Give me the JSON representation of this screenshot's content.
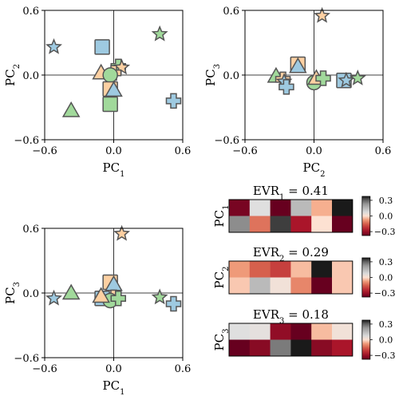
{
  "chart_data": [
    {
      "type": "scatter",
      "panel": "top-left",
      "xlabel": "PC",
      "xlabel_sub": "1",
      "ylabel": "PC",
      "ylabel_sub": "2",
      "xlim": [
        -0.6,
        0.6
      ],
      "ylim": [
        -0.6,
        0.6
      ],
      "xticks": [
        "−0.6",
        "0.0",
        "0.6"
      ],
      "yticks": [
        "−0.6",
        "0.0",
        "0.6"
      ],
      "points": [
        {
          "marker": "star",
          "color": "blue",
          "x": -0.52,
          "y": 0.26
        },
        {
          "marker": "square",
          "color": "blue",
          "x": -0.1,
          "y": 0.26
        },
        {
          "marker": "star",
          "color": "green",
          "x": 0.4,
          "y": 0.38
        },
        {
          "marker": "triangle",
          "color": "orange",
          "x": -0.11,
          "y": 0.02
        },
        {
          "marker": "plus",
          "color": "green",
          "x": 0.04,
          "y": 0.08
        },
        {
          "marker": "star",
          "color": "orange",
          "x": 0.07,
          "y": 0.07
        },
        {
          "marker": "plus",
          "color": "orange",
          "x": 0.0,
          "y": 0.02
        },
        {
          "marker": "circle",
          "color": "green",
          "x": -0.03,
          "y": 0.0
        },
        {
          "marker": "square",
          "color": "orange",
          "x": -0.03,
          "y": -0.13
        },
        {
          "marker": "triangle",
          "color": "blue",
          "x": 0.0,
          "y": -0.14
        },
        {
          "marker": "square",
          "color": "green",
          "x": -0.03,
          "y": -0.27
        },
        {
          "marker": "triangle",
          "color": "green",
          "x": -0.37,
          "y": -0.33
        },
        {
          "marker": "plus",
          "color": "blue",
          "x": 0.52,
          "y": -0.24
        }
      ]
    },
    {
      "type": "scatter",
      "panel": "top-right",
      "xlabel": "PC",
      "xlabel_sub": "2",
      "ylabel": "PC",
      "ylabel_sub": "3",
      "xlim": [
        -0.6,
        0.6
      ],
      "ylim": [
        -0.6,
        0.6
      ],
      "xticks": [
        "−0.6",
        "0.0",
        "0.6"
      ],
      "yticks": [
        "−0.6",
        "0.0",
        "0.6"
      ],
      "points": [
        {
          "marker": "star",
          "color": "orange",
          "x": 0.07,
          "y": 0.55
        },
        {
          "marker": "square",
          "color": "orange",
          "x": -0.14,
          "y": 0.1
        },
        {
          "marker": "triangle",
          "color": "blue",
          "x": -0.14,
          "y": 0.08
        },
        {
          "marker": "triangle",
          "color": "green",
          "x": -0.33,
          "y": -0.01
        },
        {
          "marker": "plus",
          "color": "orange",
          "x": -0.27,
          "y": -0.04
        },
        {
          "marker": "star",
          "color": "blue",
          "x": -0.26,
          "y": -0.06
        },
        {
          "marker": "plus",
          "color": "blue",
          "x": -0.24,
          "y": -0.11
        },
        {
          "marker": "circle",
          "color": "green",
          "x": 0.0,
          "y": -0.07
        },
        {
          "marker": "triangle",
          "color": "orange",
          "x": 0.02,
          "y": -0.03
        },
        {
          "marker": "plus",
          "color": "green",
          "x": 0.08,
          "y": -0.03
        },
        {
          "marker": "square",
          "color": "blue",
          "x": 0.26,
          "y": -0.05
        },
        {
          "marker": "star",
          "color": "blue",
          "x": 0.28,
          "y": -0.05
        },
        {
          "marker": "star",
          "color": "green",
          "x": 0.38,
          "y": -0.03
        }
      ]
    },
    {
      "type": "scatter",
      "panel": "bottom-left",
      "xlabel": "PC",
      "xlabel_sub": "1",
      "ylabel": "PC",
      "ylabel_sub": "3",
      "xlim": [
        -0.6,
        0.6
      ],
      "ylim": [
        -0.6,
        0.6
      ],
      "xticks": [
        "−0.6",
        "0.0",
        "0.6"
      ],
      "yticks": [
        "−0.6",
        "0.0",
        "0.6"
      ],
      "points": [
        {
          "marker": "star",
          "color": "orange",
          "x": 0.07,
          "y": 0.55
        },
        {
          "marker": "square",
          "color": "orange",
          "x": -0.03,
          "y": 0.1
        },
        {
          "marker": "triangle",
          "color": "blue",
          "x": 0.0,
          "y": 0.08
        },
        {
          "marker": "triangle",
          "color": "green",
          "x": -0.37,
          "y": 0.0
        },
        {
          "marker": "star",
          "color": "blue",
          "x": -0.52,
          "y": -0.05
        },
        {
          "marker": "square",
          "color": "blue",
          "x": -0.1,
          "y": -0.05
        },
        {
          "marker": "plus",
          "color": "orange",
          "x": 0.0,
          "y": -0.04
        },
        {
          "marker": "circle",
          "color": "green",
          "x": -0.03,
          "y": -0.07
        },
        {
          "marker": "triangle",
          "color": "orange",
          "x": -0.11,
          "y": -0.03
        },
        {
          "marker": "plus",
          "color": "green",
          "x": 0.04,
          "y": -0.05
        },
        {
          "marker": "star",
          "color": "green",
          "x": 0.4,
          "y": -0.04
        },
        {
          "marker": "plus",
          "color": "blue",
          "x": 0.52,
          "y": -0.1
        }
      ]
    },
    {
      "type": "heatmap",
      "title": "EVR",
      "title_sub": "1",
      "title_value": " = 0.41",
      "ylabel": "PC",
      "ylabel_sub": "1",
      "colorbar_ticks": [
        "0.3",
        "0.0",
        "−0.3"
      ],
      "vmin": -0.3,
      "vmax": 0.3,
      "values": [
        [
          -0.28,
          0.05,
          -0.3,
          0.12,
          -0.04,
          0.3
        ],
        [
          0.2,
          -0.1,
          0.27,
          -0.22,
          0.0,
          -0.3
        ]
      ]
    },
    {
      "type": "heatmap",
      "title": "EVR",
      "title_sub": "2",
      "title_value": " = 0.29",
      "ylabel": "PC",
      "ylabel_sub": "2",
      "colorbar_ticks": [
        "0.3",
        "0.0",
        "−0.3"
      ],
      "vmin": -0.3,
      "vmax": 0.3,
      "values": [
        [
          -0.06,
          -0.12,
          -0.16,
          -0.03,
          0.3,
          -0.02
        ],
        [
          -0.02,
          0.12,
          0.02,
          -0.08,
          -0.3,
          -0.02
        ]
      ]
    },
    {
      "type": "heatmap",
      "title": "EVR",
      "title_sub": "3",
      "title_value": " = 0.18",
      "ylabel": "PC",
      "ylabel_sub": "3",
      "colorbar_ticks": [
        "0.3",
        "0.0",
        "−0.3"
      ],
      "vmin": -0.3,
      "vmax": 0.3,
      "values": [
        [
          0.05,
          0.04,
          -0.25,
          -0.3,
          -0.03,
          0.02
        ],
        [
          -0.3,
          -0.26,
          0.22,
          0.3,
          -0.26,
          -0.22
        ]
      ]
    }
  ],
  "palette": {
    "blue": "#9ecae1",
    "green": "#a1d99b",
    "orange": "#fdd0a2",
    "edge": "#555555"
  }
}
